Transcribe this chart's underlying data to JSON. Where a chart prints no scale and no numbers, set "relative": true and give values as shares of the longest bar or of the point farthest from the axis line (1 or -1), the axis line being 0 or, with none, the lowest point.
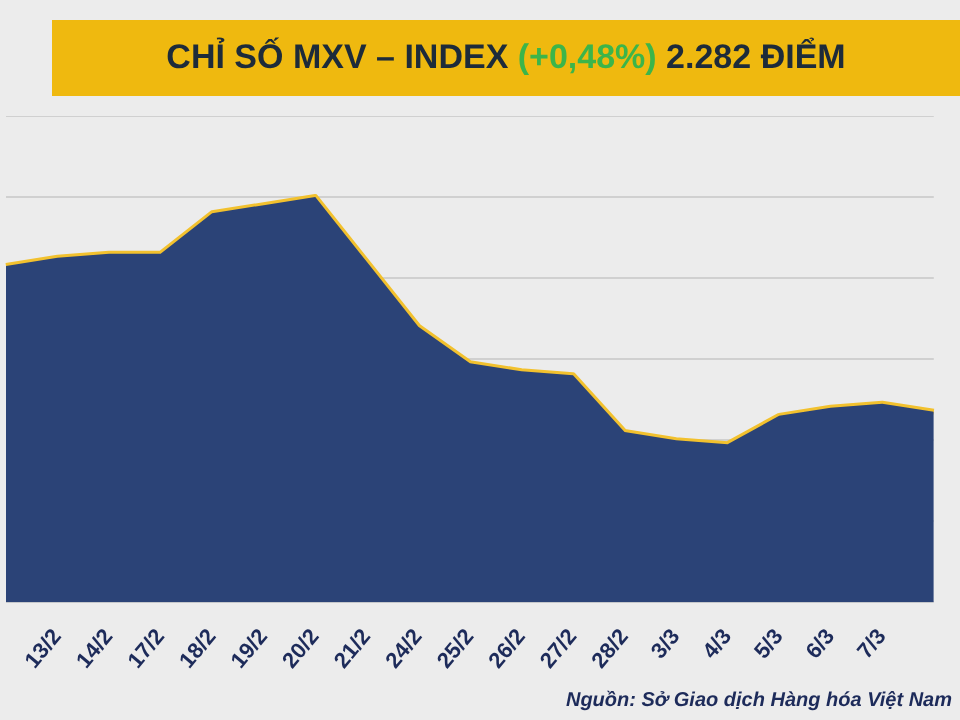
{
  "chart_data": {
    "type": "area",
    "title": "CHỈ SỐ MXV – INDEX (+0,48%) 2.282 ĐIỂM",
    "relative": true,
    "grid": "y",
    "categories": [
      null,
      "13/2",
      "14/2",
      "17/2",
      "18/2",
      "19/2",
      "20/2",
      "21/2",
      "24/2",
      "25/2",
      "26/2",
      "27/2",
      "28/2",
      "3/3",
      "4/3",
      "5/3",
      "6/3",
      "7/3",
      null
    ],
    "series": [
      {
        "color": "#2b4377",
        "values": [
          0.83,
          0.85,
          0.86,
          0.86,
          0.96,
          0.98,
          1,
          0.84,
          0.68,
          0.59,
          0.57,
          0.56,
          0.42,
          0.4,
          0.39,
          0.46,
          0.48,
          0.49,
          0.47
        ]
      },
      {
        "type": "line",
        "color": "#f2c12e",
        "values": [
          0.83,
          0.85,
          0.86,
          0.86,
          0.96,
          0.98,
          1,
          0.84,
          0.68,
          0.59,
          0.57,
          0.56,
          0.42,
          0.4,
          0.39,
          0.46,
          0.48,
          0.49,
          0.47
        ]
      }
    ],
    "annotations": [
      "Nguồn: Sở Giao dịch Hàng hóa Việt Nam"
    ]
  }
}
